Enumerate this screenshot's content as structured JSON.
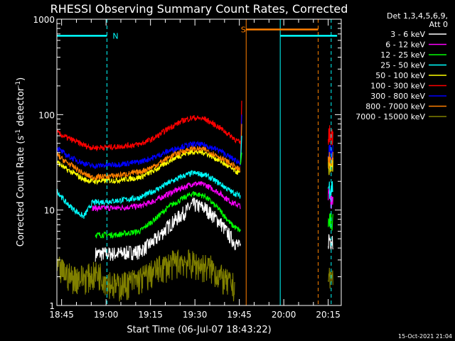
{
  "chart_data": {
    "type": "line",
    "title": "RHESSI Observing Summary Count Rates, Corrected",
    "xlabel": "Start Time (06-Jul-07 18:43:22)",
    "ylabel": "Corrected Count Rate (s⁻¹ detector⁻¹)",
    "ylabel_parts": {
      "main": "Corrected Count Rate (s",
      "sup1": "-1",
      "mid": " detector",
      "sup2": "-1",
      "end": ")"
    },
    "y_scale": "log",
    "ylim": [
      1,
      1000
    ],
    "xlim_minutes": [
      0,
      96
    ],
    "x_ticks": [
      {
        "label": "18:45",
        "min": 1.6
      },
      {
        "label": "19:00",
        "min": 16.6
      },
      {
        "label": "19:15",
        "min": 31.6
      },
      {
        "label": "19:30",
        "min": 46.6
      },
      {
        "label": "19:45",
        "min": 61.6
      },
      {
        "label": "20:00",
        "min": 76.6
      },
      {
        "label": "20:15",
        "min": 91.6
      }
    ],
    "y_ticks": [
      {
        "label": "1",
        "value": 1
      },
      {
        "label": "10",
        "value": 10
      },
      {
        "label": "100",
        "value": 100
      },
      {
        "label": "1000",
        "value": 1000
      }
    ],
    "legend": {
      "header": [
        "Det 1,3,4,5,6,9,",
        "Att 0"
      ],
      "placement": "right"
    },
    "timestamp": "15-Oct-2021 21:04",
    "series": [
      {
        "name": "3 - 6 keV",
        "color": "#ffffff",
        "points": [
          [
            13,
            3.5
          ],
          [
            20,
            3.5
          ],
          [
            28,
            3.7
          ],
          [
            33,
            4.8
          ],
          [
            38,
            7
          ],
          [
            43,
            9.5
          ],
          [
            46,
            11.5
          ],
          [
            50,
            10.5
          ],
          [
            55,
            7.5
          ],
          [
            59,
            5
          ],
          [
            62,
            4
          ]
        ]
      },
      {
        "name": "6 - 12 keV",
        "color": "#ff00ff",
        "points": [
          [
            12,
            10.5
          ],
          [
            20,
            10.5
          ],
          [
            28,
            11
          ],
          [
            33,
            12.5
          ],
          [
            38,
            15
          ],
          [
            43,
            17.5
          ],
          [
            46,
            19
          ],
          [
            50,
            18.5
          ],
          [
            55,
            15
          ],
          [
            59,
            12
          ],
          [
            62,
            11
          ]
        ]
      },
      {
        "name": "12 - 25 keV",
        "color": "#00ff00",
        "points": [
          [
            13,
            5.5
          ],
          [
            20,
            5.5
          ],
          [
            28,
            6
          ],
          [
            33,
            8
          ],
          [
            38,
            11
          ],
          [
            43,
            13.5
          ],
          [
            46,
            15
          ],
          [
            50,
            14
          ],
          [
            55,
            10
          ],
          [
            59,
            7
          ],
          [
            62,
            6
          ]
        ]
      },
      {
        "name": "25 - 50 keV",
        "color": "#00ffff",
        "points": [
          [
            0,
            16
          ],
          [
            3,
            12
          ],
          [
            6,
            10
          ],
          [
            9,
            8.5
          ],
          [
            12,
            12
          ],
          [
            20,
            12.5
          ],
          [
            28,
            13.5
          ],
          [
            33,
            16
          ],
          [
            38,
            19.5
          ],
          [
            43,
            23
          ],
          [
            46,
            24.5
          ],
          [
            50,
            23.5
          ],
          [
            55,
            19
          ],
          [
            59,
            15.5
          ],
          [
            62,
            14
          ]
        ]
      },
      {
        "name": "50 - 100 keV",
        "color": "#ffff00",
        "points": [
          [
            0,
            32
          ],
          [
            3,
            27
          ],
          [
            6,
            24
          ],
          [
            9,
            21
          ],
          [
            12,
            20
          ],
          [
            20,
            20.5
          ],
          [
            28,
            22
          ],
          [
            33,
            26
          ],
          [
            38,
            33
          ],
          [
            43,
            39
          ],
          [
            46,
            41
          ],
          [
            50,
            40
          ],
          [
            55,
            33
          ],
          [
            59,
            27
          ],
          [
            62,
            24
          ]
        ]
      },
      {
        "name": "100 - 300 keV",
        "color": "#ff0000",
        "points": [
          [
            0,
            65
          ],
          [
            3,
            58
          ],
          [
            6,
            53
          ],
          [
            9,
            48
          ],
          [
            12,
            45
          ],
          [
            20,
            46
          ],
          [
            28,
            49
          ],
          [
            33,
            57
          ],
          [
            38,
            73
          ],
          [
            43,
            88
          ],
          [
            46,
            93
          ],
          [
            50,
            90
          ],
          [
            55,
            73
          ],
          [
            59,
            59
          ],
          [
            62,
            50
          ]
        ]
      },
      {
        "name": "300 - 800 keV",
        "color": "#0000ff",
        "points": [
          [
            0,
            45
          ],
          [
            3,
            38
          ],
          [
            6,
            34
          ],
          [
            9,
            31
          ],
          [
            12,
            29
          ],
          [
            20,
            30
          ],
          [
            28,
            32
          ],
          [
            33,
            36
          ],
          [
            38,
            42
          ],
          [
            43,
            47
          ],
          [
            46,
            49
          ],
          [
            50,
            48
          ],
          [
            55,
            42
          ],
          [
            59,
            35
          ],
          [
            62,
            31
          ]
        ]
      },
      {
        "name": "800 - 7000 keV",
        "color": "#ff8000",
        "points": [
          [
            0,
            38
          ],
          [
            3,
            32
          ],
          [
            6,
            28
          ],
          [
            9,
            24
          ],
          [
            12,
            22
          ],
          [
            20,
            23
          ],
          [
            28,
            25
          ],
          [
            33,
            29
          ],
          [
            38,
            36
          ],
          [
            43,
            42
          ],
          [
            46,
            44
          ],
          [
            50,
            43
          ],
          [
            55,
            36
          ],
          [
            59,
            30
          ],
          [
            62,
            26
          ]
        ]
      },
      {
        "name": "7000 - 15000 keV",
        "color": "#808000",
        "points": [
          [
            0,
            2.5
          ],
          [
            5,
            2
          ],
          [
            10,
            2
          ],
          [
            14,
            2.2
          ],
          [
            20,
            1.6
          ],
          [
            28,
            1.9
          ],
          [
            35,
            2.5
          ],
          [
            42,
            3
          ],
          [
            47,
            2.7
          ],
          [
            52,
            2.5
          ],
          [
            57,
            1.8
          ],
          [
            60,
            1.6
          ]
        ]
      }
    ],
    "flags": [
      {
        "label": "N",
        "color": "#00ffff",
        "y": 670
      },
      {
        "label": "S",
        "color": "#ff8000",
        "y": 780
      }
    ]
  }
}
